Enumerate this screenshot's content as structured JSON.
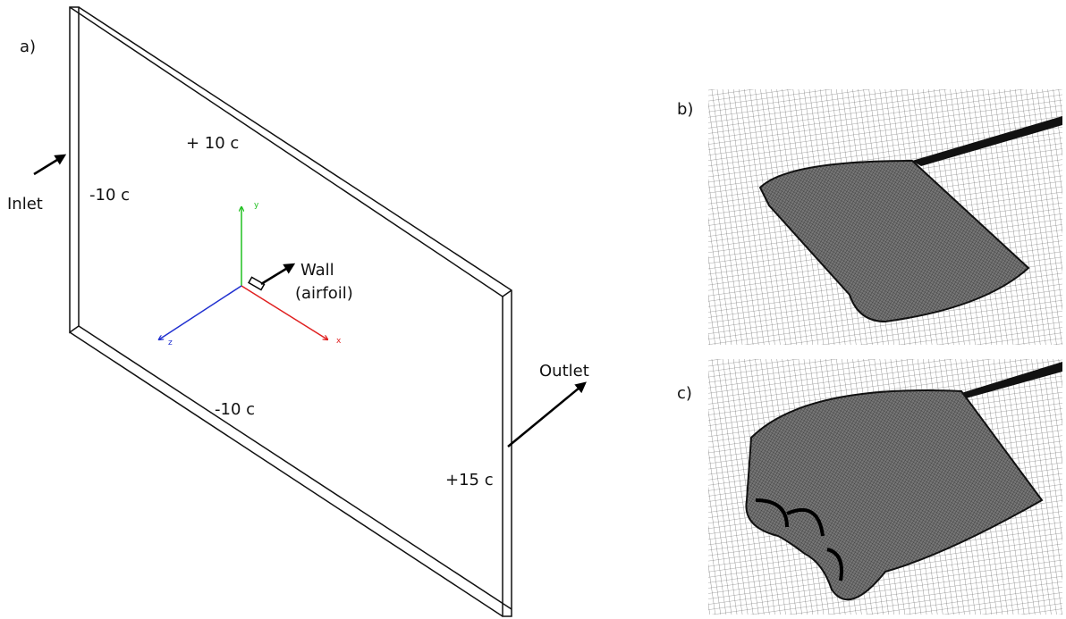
{
  "labels": {
    "a": "a)",
    "b": "b)",
    "c": "c)"
  },
  "domain": {
    "top": "+ 10 c",
    "left": "-10 c",
    "bottom": "-10 c",
    "right": "+15 c"
  },
  "boundaries": {
    "inlet": "Inlet",
    "outlet": "Outlet",
    "wall": "Wall",
    "wall_note": "(airfoil)"
  },
  "axes": {
    "x": "x",
    "y": "y",
    "z": "z"
  }
}
